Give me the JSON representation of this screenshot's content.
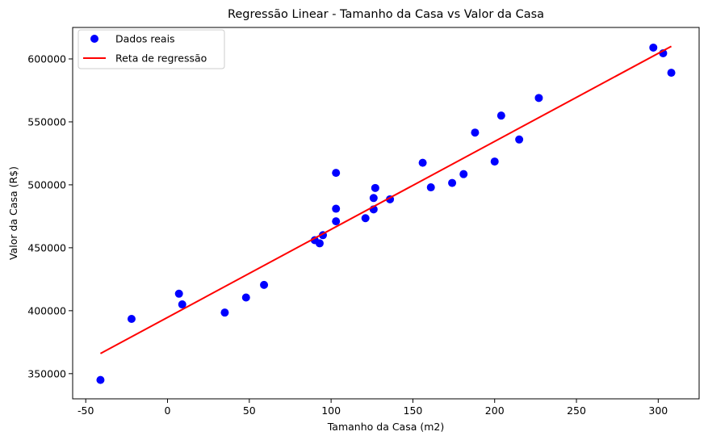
{
  "chart_data": {
    "type": "scatter",
    "title": "Regressão Linear - Tamanho da Casa vs Valor da Casa",
    "xlabel": "Tamanho da Casa (m2)",
    "ylabel": "Valor da Casa (R$)",
    "xlim": [
      -58,
      325
    ],
    "ylim": [
      330000,
      625000
    ],
    "xticks": [
      -50,
      0,
      50,
      100,
      150,
      200,
      250,
      300
    ],
    "yticks": [
      350000,
      400000,
      450000,
      500000,
      550000,
      600000
    ],
    "grid": false,
    "legend_position": "top-left",
    "series": [
      {
        "name": "Dados reais",
        "kind": "scatter",
        "color": "#0000ff",
        "points": [
          [
            -41,
            345000
          ],
          [
            -22,
            393500
          ],
          [
            7,
            413500
          ],
          [
            9,
            405000
          ],
          [
            35,
            398500
          ],
          [
            48,
            410500
          ],
          [
            59,
            420500
          ],
          [
            90,
            456000
          ],
          [
            93,
            453500
          ],
          [
            95,
            460000
          ],
          [
            103,
            509500
          ],
          [
            103,
            481000
          ],
          [
            103,
            471000
          ],
          [
            121,
            473500
          ],
          [
            126,
            489500
          ],
          [
            126,
            480500
          ],
          [
            127,
            497500
          ],
          [
            136,
            488500
          ],
          [
            156,
            517500
          ],
          [
            161,
            498000
          ],
          [
            174,
            501500
          ],
          [
            181,
            508500
          ],
          [
            188,
            541500
          ],
          [
            200,
            518500
          ],
          [
            204,
            555000
          ],
          [
            215,
            536000
          ],
          [
            227,
            569000
          ],
          [
            297,
            609000
          ],
          [
            303,
            604500
          ],
          [
            308,
            589000
          ]
        ]
      },
      {
        "name": "Reta de regressão",
        "kind": "line",
        "color": "#ff0000",
        "points": [
          [
            -41,
            366000
          ],
          [
            308,
            610000
          ]
        ]
      }
    ]
  }
}
